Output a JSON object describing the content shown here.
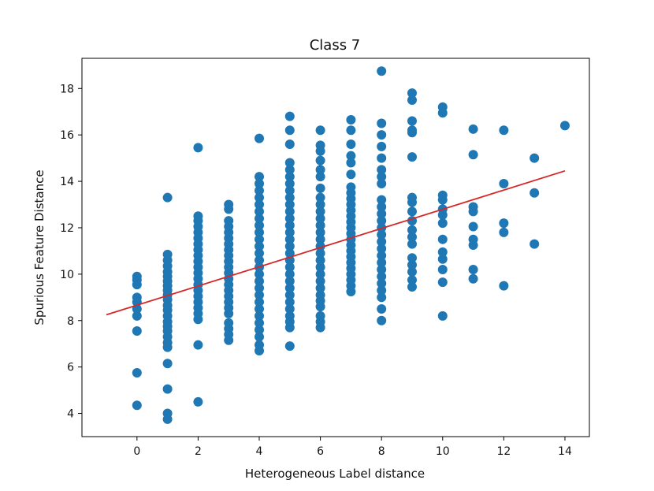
{
  "chart_data": {
    "type": "scatter",
    "title": "Class 7",
    "xlabel": "Heterogeneous Label distance",
    "ylabel": "Spurious Feature Distance",
    "xlim": [
      -1.8,
      14.8
    ],
    "ylim": [
      3.0,
      19.3
    ],
    "xticks": [
      0,
      2,
      4,
      6,
      8,
      10,
      12,
      14
    ],
    "yticks": [
      4,
      6,
      8,
      10,
      12,
      14,
      16,
      18
    ],
    "grid": false,
    "point_color": "#1f77b4",
    "line_color": "#d62728",
    "points": [
      {
        "x": 0,
        "ys": [
          4.35,
          5.75,
          7.55,
          8.2,
          8.5,
          8.8,
          9.0,
          9.55,
          9.75,
          9.9
        ]
      },
      {
        "x": 1,
        "ys": [
          3.75,
          4.0,
          5.05,
          6.15,
          6.85,
          7.05,
          7.3,
          7.55,
          7.75,
          7.95,
          8.2,
          8.45,
          8.65,
          8.9,
          9.1,
          9.3,
          9.5,
          9.7,
          9.9,
          10.1,
          10.35,
          10.6,
          10.85,
          13.3
        ]
      },
      {
        "x": 2,
        "ys": [
          4.5,
          6.95,
          8.05,
          8.3,
          8.55,
          8.8,
          9.05,
          9.3,
          9.55,
          9.8,
          10.05,
          10.3,
          10.55,
          10.8,
          11.05,
          11.3,
          11.55,
          11.8,
          12.05,
          12.3,
          12.5,
          15.45
        ]
      },
      {
        "x": 3,
        "ys": [
          7.15,
          7.4,
          7.65,
          7.9,
          8.3,
          8.55,
          8.8,
          9.05,
          9.3,
          9.55,
          9.8,
          10.05,
          10.3,
          10.55,
          10.8,
          11.05,
          11.3,
          11.55,
          11.8,
          12.05,
          12.3,
          12.8,
          13.0
        ]
      },
      {
        "x": 4,
        "ys": [
          6.7,
          6.95,
          7.3,
          7.6,
          7.9,
          8.2,
          8.5,
          8.8,
          9.1,
          9.4,
          9.7,
          10.0,
          10.3,
          10.6,
          10.9,
          11.2,
          11.5,
          11.8,
          12.1,
          12.4,
          12.7,
          13.0,
          13.3,
          13.6,
          13.9,
          14.2,
          15.85
        ]
      },
      {
        "x": 5,
        "ys": [
          6.9,
          7.7,
          7.95,
          8.2,
          8.5,
          8.8,
          9.1,
          9.4,
          9.7,
          10.0,
          10.3,
          10.6,
          10.9,
          11.2,
          11.5,
          11.8,
          12.1,
          12.4,
          12.7,
          13.0,
          13.3,
          13.6,
          13.9,
          14.2,
          14.5,
          14.8,
          15.6,
          16.2,
          16.8
        ]
      },
      {
        "x": 6,
        "ys": [
          7.7,
          7.95,
          8.2,
          8.6,
          8.85,
          9.1,
          9.4,
          9.7,
          10.0,
          10.3,
          10.6,
          10.9,
          11.2,
          11.5,
          11.8,
          12.1,
          12.4,
          12.7,
          13.0,
          13.3,
          13.7,
          14.2,
          14.5,
          14.9,
          15.3,
          15.55,
          16.2
        ]
      },
      {
        "x": 7,
        "ys": [
          9.25,
          9.5,
          9.75,
          10.0,
          10.25,
          10.5,
          10.75,
          11.0,
          11.25,
          11.5,
          11.75,
          12.0,
          12.25,
          12.5,
          12.75,
          13.0,
          13.25,
          13.5,
          13.75,
          14.3,
          14.8,
          15.1,
          15.6,
          16.2,
          16.65
        ]
      },
      {
        "x": 8,
        "ys": [
          8.0,
          8.5,
          9.0,
          9.3,
          9.6,
          9.9,
          10.2,
          10.5,
          10.8,
          11.1,
          11.4,
          11.7,
          12.0,
          12.3,
          12.6,
          12.9,
          13.2,
          13.9,
          14.2,
          14.5,
          15.0,
          15.5,
          16.0,
          16.5,
          18.75
        ]
      },
      {
        "x": 9,
        "ys": [
          9.45,
          9.75,
          10.1,
          10.4,
          10.7,
          11.3,
          11.6,
          11.9,
          12.3,
          12.7,
          13.1,
          13.3,
          15.05,
          16.1,
          16.2,
          16.6,
          17.5,
          17.8
        ]
      },
      {
        "x": 10,
        "ys": [
          8.2,
          9.65,
          10.2,
          10.65,
          10.95,
          11.5,
          12.2,
          12.55,
          12.8,
          13.2,
          13.4,
          16.95,
          17.2
        ]
      },
      {
        "x": 11,
        "ys": [
          9.8,
          10.2,
          11.25,
          11.5,
          12.05,
          12.7,
          12.9,
          15.15,
          16.25
        ]
      },
      {
        "x": 12,
        "ys": [
          9.5,
          11.8,
          12.2,
          13.9,
          16.2
        ]
      },
      {
        "x": 13,
        "ys": [
          11.3,
          13.5,
          15.0
        ]
      },
      {
        "x": 14,
        "ys": [
          16.4
        ]
      }
    ],
    "fit_line": {
      "x": [
        -1.0,
        14.0
      ],
      "y": [
        8.25,
        14.45
      ]
    }
  }
}
